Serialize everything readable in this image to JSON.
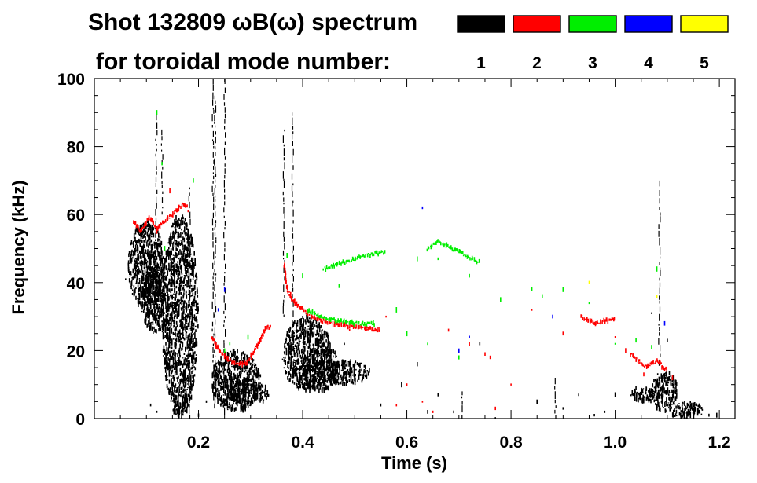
{
  "chart_data": {
    "type": "heatmap",
    "title": "Shot 132809 ωB(ω) spectrum",
    "subtitle": "for toroidal mode number:",
    "xlabel": "Time (s)",
    "ylabel": "Frequency (kHz)",
    "xlim": [
      0.0,
      1.23
    ],
    "ylim": [
      0,
      100
    ],
    "x_ticks": [
      {
        "value": 0.2,
        "label": "0.2"
      },
      {
        "value": 0.4,
        "label": "0.4"
      },
      {
        "value": 0.6,
        "label": "0.6"
      },
      {
        "value": 0.8,
        "label": "0.8"
      },
      {
        "value": 1.0,
        "label": "1.0"
      },
      {
        "value": 1.2,
        "label": "1.2"
      }
    ],
    "y_ticks": [
      {
        "value": 0,
        "label": "0"
      },
      {
        "value": 20,
        "label": "20"
      },
      {
        "value": 40,
        "label": "40"
      },
      {
        "value": 60,
        "label": "60"
      },
      {
        "value": 80,
        "label": "80"
      },
      {
        "value": 100,
        "label": "100"
      }
    ],
    "x_minor_step": 0.05,
    "y_minor_step": 5,
    "grid": false,
    "legend_placement": "top-right",
    "series": [
      {
        "name": "1",
        "color": "#000000",
        "blobs": [
          {
            "t0": 0.065,
            "t1": 0.135,
            "f0": 32,
            "f1": 58
          },
          {
            "t0": 0.09,
            "t1": 0.145,
            "f0": 25,
            "f1": 45
          },
          {
            "t0": 0.13,
            "t1": 0.2,
            "f0": 0,
            "f1": 60
          },
          {
            "t0": 0.225,
            "t1": 0.32,
            "f0": 2,
            "f1": 20
          },
          {
            "t0": 0.265,
            "t1": 0.31,
            "f0": 3,
            "f1": 12
          },
          {
            "t0": 0.305,
            "t1": 0.335,
            "f0": 5,
            "f1": 10
          },
          {
            "t0": 0.36,
            "t1": 0.455,
            "f0": 8,
            "f1": 30
          },
          {
            "t0": 0.4,
            "t1": 0.47,
            "f0": 8,
            "f1": 22
          },
          {
            "t0": 0.44,
            "t1": 0.53,
            "f0": 10,
            "f1": 17
          },
          {
            "t0": 1.03,
            "t1": 1.09,
            "f0": 5,
            "f1": 9
          },
          {
            "t0": 1.07,
            "t1": 1.12,
            "f0": 2,
            "f1": 14
          },
          {
            "t0": 1.1,
            "t1": 1.17,
            "f0": 0,
            "f1": 5
          }
        ],
        "streaks": [
          {
            "t": 0.119,
            "f0": 55,
            "f1": 90
          },
          {
            "t": 0.13,
            "f0": 60,
            "f1": 85
          },
          {
            "t": 0.183,
            "f0": 0,
            "f1": 68
          },
          {
            "t": 0.228,
            "f0": 5,
            "f1": 100
          },
          {
            "t": 0.232,
            "f0": 2,
            "f1": 95
          },
          {
            "t": 0.25,
            "f0": 0,
            "f1": 100
          },
          {
            "t": 0.381,
            "f0": 25,
            "f1": 90
          },
          {
            "t": 0.364,
            "f0": 30,
            "f1": 85
          },
          {
            "t": 1.085,
            "f0": 15,
            "f1": 70
          },
          {
            "t": 0.705,
            "f0": 0,
            "f1": 8
          },
          {
            "t": 0.885,
            "f0": 0,
            "f1": 12
          }
        ],
        "points": [
          [
            0.07,
            43
          ],
          [
            0.06,
            41
          ],
          [
            0.108,
            4
          ],
          [
            0.12,
            2
          ],
          [
            0.2,
            1
          ],
          [
            0.215,
            5
          ],
          [
            0.48,
            22
          ],
          [
            0.51,
            14
          ],
          [
            0.55,
            4
          ],
          [
            0.59,
            10
          ],
          [
            0.62,
            16
          ],
          [
            0.64,
            2
          ],
          [
            0.66,
            7
          ],
          [
            0.69,
            2
          ],
          [
            0.74,
            22
          ],
          [
            0.77,
            0
          ],
          [
            0.85,
            5
          ],
          [
            0.9,
            3
          ],
          [
            0.93,
            7
          ],
          [
            0.96,
            1
          ],
          [
            0.98,
            2
          ],
          [
            1.0,
            7
          ],
          [
            1.04,
            9
          ],
          [
            1.07,
            31
          ],
          [
            1.1,
            23
          ],
          [
            1.15,
            4
          ],
          [
            1.18,
            1
          ],
          [
            1.195,
            1
          ]
        ]
      },
      {
        "name": "2",
        "color": "#ff0000",
        "paths": [
          [
            [
              0.225,
              24
            ],
            [
              0.24,
              20
            ],
            [
              0.26,
              17
            ],
            [
              0.28,
              16
            ],
            [
              0.29,
              16
            ],
            [
              0.3,
              18
            ],
            [
              0.315,
              22
            ],
            [
              0.33,
              27
            ],
            [
              0.34,
              27
            ]
          ],
          [
            [
              0.365,
              45
            ],
            [
              0.37,
              38
            ],
            [
              0.385,
              34
            ],
            [
              0.4,
              32
            ],
            [
              0.42,
              30
            ],
            [
              0.45,
              28
            ],
            [
              0.5,
              27
            ],
            [
              0.55,
              26
            ]
          ],
          [
            [
              0.075,
              58
            ],
            [
              0.09,
              55
            ],
            [
              0.105,
              59
            ],
            [
              0.12,
              56
            ],
            [
              0.15,
              60
            ],
            [
              0.17,
              63
            ],
            [
              0.18,
              62
            ]
          ],
          [
            [
              0.935,
              30
            ],
            [
              0.96,
              28
            ],
            [
              0.99,
              29
            ],
            [
              1.0,
              29
            ]
          ],
          [
            [
              1.03,
              19
            ],
            [
              1.06,
              15
            ],
            [
              1.08,
              17
            ],
            [
              1.1,
              14
            ]
          ]
        ],
        "points": [
          [
            0.12,
            55
          ],
          [
            0.145,
            67
          ],
          [
            0.18,
            61
          ],
          [
            0.49,
            26
          ],
          [
            0.52,
            26
          ],
          [
            0.56,
            30
          ],
          [
            0.6,
            10
          ],
          [
            0.68,
            26
          ],
          [
            0.72,
            22
          ],
          [
            0.76,
            18
          ],
          [
            0.8,
            10
          ],
          [
            0.84,
            32
          ],
          [
            0.9,
            25
          ],
          [
            1.0,
            24
          ],
          [
            1.02,
            20
          ],
          [
            1.055,
            13
          ],
          [
            1.11,
            12
          ],
          [
            0.58,
            4
          ],
          [
            0.65,
            2
          ],
          [
            0.63,
            5
          ],
          [
            0.77,
            3
          ],
          [
            0.75,
            19
          ]
        ]
      },
      {
        "name": "3",
        "color": "#00ee00",
        "paths": [
          [
            [
              0.41,
              32
            ],
            [
              0.43,
              30
            ],
            [
              0.46,
              29
            ],
            [
              0.5,
              28
            ],
            [
              0.54,
              28
            ]
          ],
          [
            [
              0.44,
              44
            ],
            [
              0.48,
              46
            ],
            [
              0.52,
              48
            ],
            [
              0.56,
              49
            ]
          ],
          [
            [
              0.64,
              50
            ],
            [
              0.66,
              52
            ],
            [
              0.7,
              49
            ],
            [
              0.74,
              46
            ]
          ]
        ],
        "points": [
          [
            0.12,
            90
          ],
          [
            0.13,
            75
          ],
          [
            0.135,
            50
          ],
          [
            0.19,
            70
          ],
          [
            0.25,
            20
          ],
          [
            0.26,
            22
          ],
          [
            0.295,
            24
          ],
          [
            0.37,
            48
          ],
          [
            0.4,
            42
          ],
          [
            0.6,
            25
          ],
          [
            0.62,
            47
          ],
          [
            0.66,
            47
          ],
          [
            0.7,
            18
          ],
          [
            0.78,
            35
          ],
          [
            0.84,
            38
          ],
          [
            0.86,
            36
          ],
          [
            0.9,
            38
          ],
          [
            0.95,
            34
          ],
          [
            1.0,
            22
          ],
          [
            1.04,
            23
          ],
          [
            1.07,
            21
          ],
          [
            1.08,
            44
          ],
          [
            0.47,
            39
          ],
          [
            0.58,
            32
          ],
          [
            0.64,
            22
          ],
          [
            0.72,
            42
          ]
        ]
      },
      {
        "name": "4",
        "color": "#0000ff",
        "points": [
          [
            0.238,
            32
          ],
          [
            0.63,
            62
          ],
          [
            0.7,
            20
          ],
          [
            0.72,
            24
          ],
          [
            0.88,
            30
          ],
          [
            1.095,
            28
          ],
          [
            0.25,
            38
          ]
        ]
      },
      {
        "name": "5",
        "color": "#ffff00",
        "points": [
          [
            0.95,
            40
          ],
          [
            1.08,
            36
          ]
        ]
      }
    ]
  }
}
